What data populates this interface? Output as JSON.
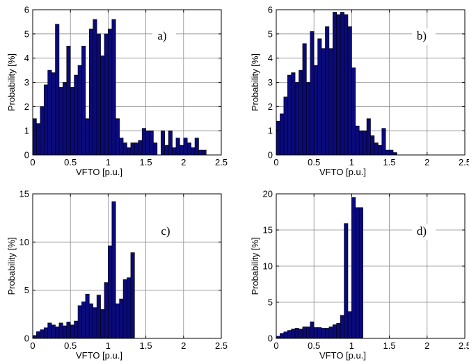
{
  "chart_data": [
    {
      "type": "bar",
      "panel_label": "a)",
      "xlabel": "VFTO [p.u.]",
      "ylabel": "Probability [%]",
      "xlim": [
        0,
        2.5
      ],
      "ylim": [
        0,
        6
      ],
      "xticks": [
        "0",
        "0.5",
        "1",
        "1.5",
        "2",
        "2.5"
      ],
      "yticks": [
        "0",
        "1",
        "2",
        "3",
        "4",
        "5",
        "6"
      ],
      "grid": true,
      "bin_width": 0.05,
      "x": [
        0.025,
        0.075,
        0.125,
        0.175,
        0.225,
        0.275,
        0.325,
        0.375,
        0.425,
        0.475,
        0.525,
        0.575,
        0.625,
        0.675,
        0.725,
        0.775,
        0.825,
        0.875,
        0.925,
        0.975,
        1.025,
        1.075,
        1.125,
        1.175,
        1.225,
        1.275,
        1.325,
        1.375,
        1.425,
        1.475,
        1.525,
        1.575,
        1.625,
        1.725,
        1.775,
        1.825,
        1.875,
        1.925,
        1.975,
        2.025,
        2.075,
        2.125,
        2.175,
        2.225,
        2.275
      ],
      "values": [
        1.5,
        1.3,
        2.0,
        2.9,
        3.5,
        3.4,
        5.4,
        2.8,
        3.0,
        4.5,
        2.8,
        3.3,
        3.7,
        4.5,
        1.5,
        5.2,
        5.6,
        5.0,
        4.1,
        5.0,
        5.2,
        5.6,
        1.5,
        0.7,
        0.5,
        0.3,
        0.5,
        0.5,
        0.6,
        1.1,
        1.0,
        1.0,
        0.5,
        1.0,
        0.4,
        1.0,
        0.3,
        0.7,
        0.4,
        0.7,
        0.5,
        0.3,
        0.7,
        0.2,
        0.2
      ]
    },
    {
      "type": "bar",
      "panel_label": "b)",
      "xlabel": "VFTO [p.u.]",
      "ylabel": "Probability [%]",
      "xlim": [
        0,
        2.5
      ],
      "ylim": [
        0,
        6
      ],
      "xticks": [
        "0",
        "0.5",
        "1",
        "1.5",
        "2",
        "2.5"
      ],
      "yticks": [
        "0",
        "1",
        "2",
        "3",
        "4",
        "5",
        "6"
      ],
      "grid": true,
      "bin_width": 0.05,
      "x": [
        0.025,
        0.075,
        0.125,
        0.175,
        0.225,
        0.275,
        0.325,
        0.375,
        0.425,
        0.475,
        0.525,
        0.575,
        0.625,
        0.675,
        0.725,
        0.775,
        0.825,
        0.875,
        0.925,
        0.975,
        1.025,
        1.075,
        1.125,
        1.175,
        1.225,
        1.275,
        1.325,
        1.375,
        1.425,
        1.475,
        1.525,
        1.575
      ],
      "values": [
        1.4,
        1.7,
        2.4,
        3.3,
        3.4,
        3.0,
        3.5,
        4.6,
        3.0,
        5.1,
        3.7,
        4.8,
        4.4,
        5.3,
        4.4,
        5.9,
        5.8,
        5.9,
        5.8,
        5.3,
        3.6,
        1.2,
        1.0,
        1.0,
        1.5,
        0.8,
        0.5,
        0.4,
        1.1,
        0.2,
        0.2,
        0.1
      ]
    },
    {
      "type": "bar",
      "panel_label": "c)",
      "xlabel": "VFTO [p.u.]",
      "ylabel": "Probability [%]",
      "xlim": [
        0,
        2.5
      ],
      "ylim": [
        0,
        15
      ],
      "xticks": [
        "0",
        "0.5",
        "1",
        "1.5",
        "2",
        "2.5"
      ],
      "yticks": [
        "0",
        "5",
        "10",
        "15"
      ],
      "grid": true,
      "bin_width": 0.05,
      "x": [
        0.025,
        0.075,
        0.125,
        0.175,
        0.225,
        0.275,
        0.325,
        0.375,
        0.425,
        0.475,
        0.525,
        0.575,
        0.625,
        0.675,
        0.725,
        0.775,
        0.825,
        0.875,
        0.925,
        0.975,
        1.025,
        1.075,
        1.125,
        1.175,
        1.225,
        1.275,
        1.325
      ],
      "values": [
        0.3,
        0.7,
        0.9,
        1.1,
        1.6,
        1.4,
        1.2,
        1.6,
        1.3,
        1.7,
        1.4,
        1.8,
        3.4,
        3.8,
        4.6,
        3.6,
        3.2,
        4.5,
        3.0,
        5.8,
        9.6,
        14.2,
        3.6,
        4.1,
        6.1,
        6.3,
        8.9
      ]
    },
    {
      "type": "bar",
      "panel_label": "d)",
      "xlabel": "VFTO [p.u.]",
      "ylabel": "Probability [%]",
      "xlim": [
        0,
        2.5
      ],
      "ylim": [
        0,
        20
      ],
      "xticks": [
        "0",
        "0.5",
        "1",
        "1.5",
        "2",
        "2.5"
      ],
      "yticks": [
        "0",
        "5",
        "10",
        "15",
        "20"
      ],
      "grid": true,
      "bin_width": 0.05,
      "x": [
        0.025,
        0.075,
        0.125,
        0.175,
        0.225,
        0.275,
        0.325,
        0.375,
        0.425,
        0.475,
        0.525,
        0.575,
        0.625,
        0.675,
        0.725,
        0.775,
        0.825,
        0.875,
        0.925,
        0.975,
        1.025,
        1.075,
        1.125
      ],
      "values": [
        0.3,
        0.7,
        0.9,
        1.1,
        1.3,
        1.4,
        1.3,
        1.6,
        1.6,
        2.3,
        1.5,
        1.5,
        1.4,
        1.4,
        1.6,
        1.9,
        2.1,
        3.2,
        15.9,
        3.7,
        19.5,
        18.1,
        18.1
      ]
    }
  ],
  "colors": {
    "bar_fill": "#0a0a7a",
    "bar_stroke": "#000000",
    "grid": "#8a8a8a",
    "axes": "#000000"
  }
}
